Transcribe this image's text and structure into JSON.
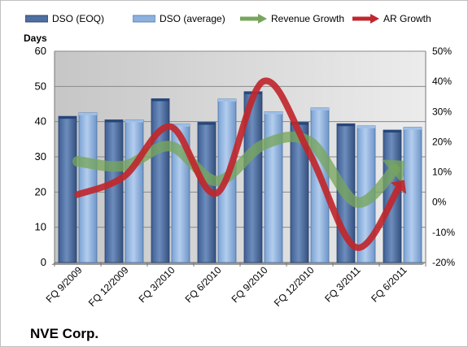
{
  "chart_data": {
    "type": "bar",
    "title": "NVE Corp.",
    "ylabel": "Days",
    "categories": [
      "FQ 9/2009",
      "FQ 12/2009",
      "FQ 3/2010",
      "FQ 6/2010",
      "FQ 9/2010",
      "FQ 12/2010",
      "FQ 3/2011",
      "FQ 6/2011"
    ],
    "ylim": [
      0,
      60
    ],
    "yticks": [
      "0",
      "10",
      "20",
      "30",
      "40",
      "50",
      "60"
    ],
    "y2lim": [
      -20,
      50
    ],
    "y2ticks": [
      "-20%",
      "-10%",
      "0%",
      "10%",
      "20%",
      "30%",
      "40%",
      "50%"
    ],
    "series": [
      {
        "name": "DSO (EOQ)",
        "type": "bar",
        "axis": "left",
        "color": "#4f6fa0",
        "values": [
          41.5,
          40.5,
          46.5,
          39.8,
          48.5,
          39.8,
          39.4,
          37.6
        ]
      },
      {
        "name": "DSO (average)",
        "type": "bar",
        "axis": "left",
        "color": "#8cb1de",
        "values": [
          42.5,
          40.5,
          39.3,
          46.4,
          42.8,
          43.9,
          38.8,
          38.4
        ]
      },
      {
        "name": "Revenue Growth",
        "type": "line",
        "axis": "right",
        "color": "#77a55c",
        "unit": "%",
        "values": [
          13.5,
          12,
          18.5,
          7,
          19,
          20,
          0,
          13
        ]
      },
      {
        "name": "AR Growth",
        "type": "line",
        "axis": "right",
        "color": "#c0272d",
        "unit": "%",
        "values": [
          2.5,
          8.5,
          25,
          3,
          40,
          16,
          -15,
          6.5
        ]
      }
    ],
    "grid": true,
    "legend": "top"
  }
}
